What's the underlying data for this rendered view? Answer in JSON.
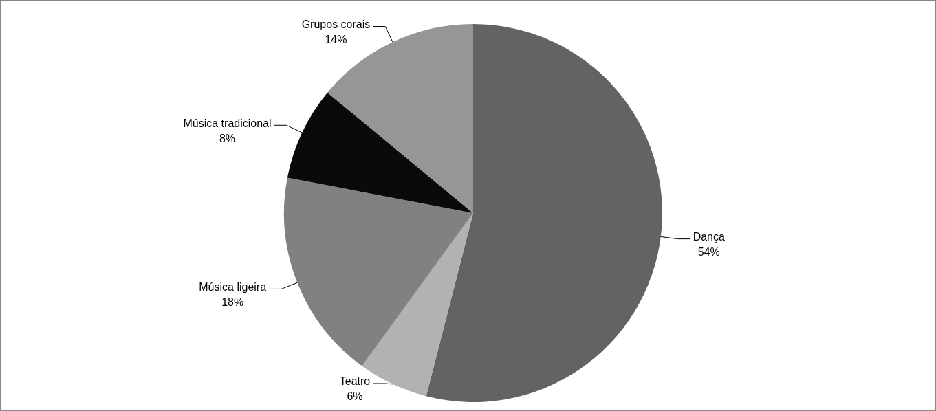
{
  "chart_data": {
    "type": "pie",
    "categories": [
      "Dança",
      "Teatro",
      "Música ligeira",
      "Música tradicional",
      "Grupos corais"
    ],
    "values": [
      54,
      6,
      18,
      8,
      14
    ],
    "colors": [
      "#636363",
      "#b2b2b2",
      "#818181",
      "#0a0a0a",
      "#969696"
    ],
    "value_labels": [
      "54%",
      "6%",
      "18%",
      "8%",
      "14%"
    ],
    "legend": false
  }
}
